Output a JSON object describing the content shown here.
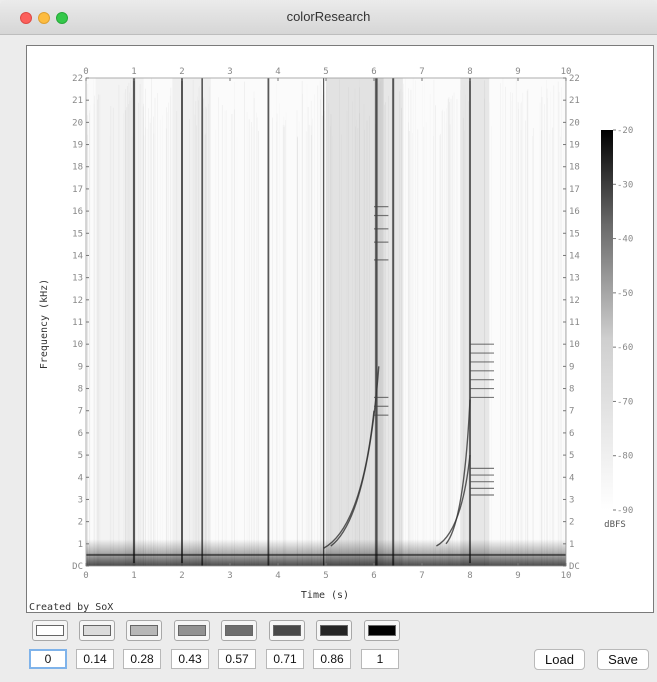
{
  "window": {
    "title": "colorResearch"
  },
  "spectrogram": {
    "x_label": "Time (s)",
    "y_label": "Frequency (kHz)",
    "x_ticks": [
      "0",
      "1",
      "2",
      "3",
      "4",
      "5",
      "6",
      "7",
      "8",
      "9",
      "10"
    ],
    "y_ticks": [
      "DC",
      "1",
      "2",
      "3",
      "4",
      "5",
      "6",
      "7",
      "8",
      "9",
      "10",
      "11",
      "12",
      "13",
      "14",
      "15",
      "16",
      "17",
      "18",
      "19",
      "20",
      "21",
      "22"
    ],
    "colorbar_ticks": [
      "-20",
      "-30",
      "-40",
      "-50",
      "-60",
      "-70",
      "-80",
      "-90"
    ],
    "colorbar_unit": "dBFS",
    "credit": "Created by SoX"
  },
  "chart_data": {
    "type": "heatmap",
    "title": "",
    "xlabel": "Time (s)",
    "ylabel": "Frequency (kHz)",
    "xlim": [
      0,
      10
    ],
    "ylim": [
      0,
      22
    ],
    "colorbar": {
      "label": "dBFS",
      "range": [
        -90,
        -20
      ],
      "ticks": [
        -20,
        -30,
        -40,
        -50,
        -60,
        -70,
        -80,
        -90
      ]
    },
    "colormap": "grayscale (white = low, black = high)"
  },
  "palette": {
    "swatches": [
      "#ffffff",
      "#dbdbdb",
      "#b7b7b7",
      "#929292",
      "#6e6e6e",
      "#494949",
      "#252525",
      "#000000"
    ],
    "values": [
      "0",
      "0.14",
      "0.28",
      "0.43",
      "0.57",
      "0.71",
      "0.86",
      "1"
    ]
  },
  "buttons": {
    "load": "Load",
    "save": "Save"
  }
}
